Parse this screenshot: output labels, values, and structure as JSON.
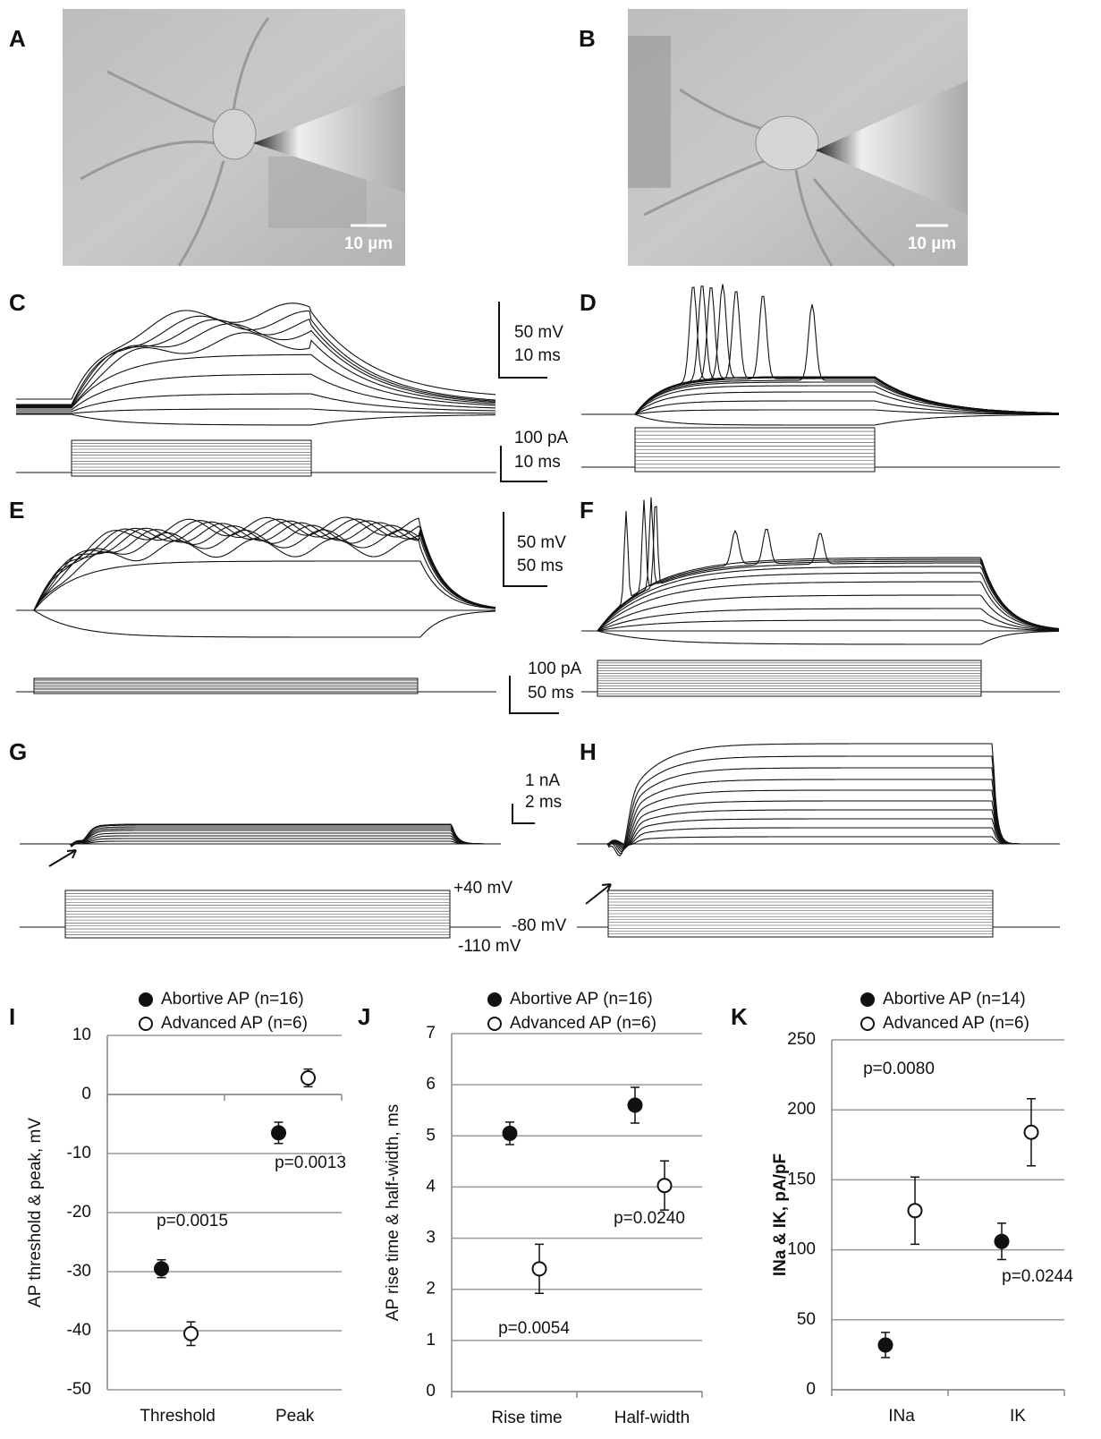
{
  "figure": {
    "panels": [
      {
        "label": "A",
        "scale": "10 µm"
      },
      {
        "label": "B",
        "scale": "10 µm"
      },
      {
        "label": "C",
        "scale": [
          "50 mV",
          "10 ms"
        ],
        "stim_scale": [
          "100 pA",
          "10 ms"
        ]
      },
      {
        "label": "D"
      },
      {
        "label": "E",
        "scale": [
          "50 mV",
          "50 ms"
        ]
      },
      {
        "label": "F",
        "stim_scale": [
          "100 pA",
          "50 ms"
        ]
      },
      {
        "label": "G",
        "scale": [
          "1 nA",
          "2 ms"
        ],
        "voltages": [
          "+40 mV",
          "-80 mV",
          "-110 mV"
        ]
      },
      {
        "label": "H"
      }
    ]
  },
  "chart_data": [
    {
      "type": "point",
      "panel": "I",
      "ylabel": "AP  threshold & peak,  mV",
      "categories": [
        "Threshold",
        "Peak"
      ],
      "series": [
        {
          "name": "Abortive AP (n=16)",
          "color": "#111111",
          "marker": "filled",
          "values": [
            -29.5,
            -6.5
          ],
          "errors": [
            1.5,
            1.8
          ]
        },
        {
          "name": "Advanced AP (n=6)",
          "color": "#111111",
          "marker": "open",
          "values": [
            -40.5,
            2.8
          ],
          "errors": [
            2.0,
            1.5
          ]
        }
      ],
      "ylim": [
        -50,
        10
      ],
      "yticks": [
        -50,
        -40,
        -30,
        -20,
        -10,
        0,
        10
      ],
      "grid": true,
      "annotations": [
        "p=0.0015",
        "p=0.0013"
      ]
    },
    {
      "type": "point",
      "panel": "J",
      "ylabel": "AP rise time & half-width, ms",
      "categories": [
        "Rise time",
        "Half-width"
      ],
      "series": [
        {
          "name": "Abortive AP (n=16)",
          "color": "#111111",
          "marker": "filled",
          "values": [
            5.05,
            5.6
          ],
          "errors": [
            0.22,
            0.35
          ]
        },
        {
          "name": "Advanced AP (n=6)",
          "color": "#111111",
          "marker": "open",
          "values": [
            2.4,
            4.03
          ],
          "errors": [
            0.48,
            0.48
          ]
        }
      ],
      "ylim": [
        0,
        7
      ],
      "yticks": [
        0,
        1,
        2,
        3,
        4,
        5,
        6,
        7
      ],
      "grid": true,
      "annotations": [
        "p=0.0054",
        "p=0.0240"
      ]
    },
    {
      "type": "point",
      "panel": "K",
      "ylabel": "INa & IK, pA/pF",
      "categories": [
        "INa",
        "IK"
      ],
      "series": [
        {
          "name": "Abortive AP (n=14)",
          "color": "#111111",
          "marker": "filled",
          "values": [
            32,
            106
          ],
          "errors": [
            9,
            13
          ]
        },
        {
          "name": "Advanced AP (n=6)",
          "color": "#111111",
          "marker": "open",
          "values": [
            128,
            184
          ],
          "errors": [
            24,
            24
          ]
        }
      ],
      "ylim": [
        0,
        250
      ],
      "yticks": [
        0,
        50,
        100,
        150,
        200,
        250
      ],
      "grid": true,
      "annotations": [
        "p=0.0080",
        "p=0.0244"
      ]
    }
  ]
}
